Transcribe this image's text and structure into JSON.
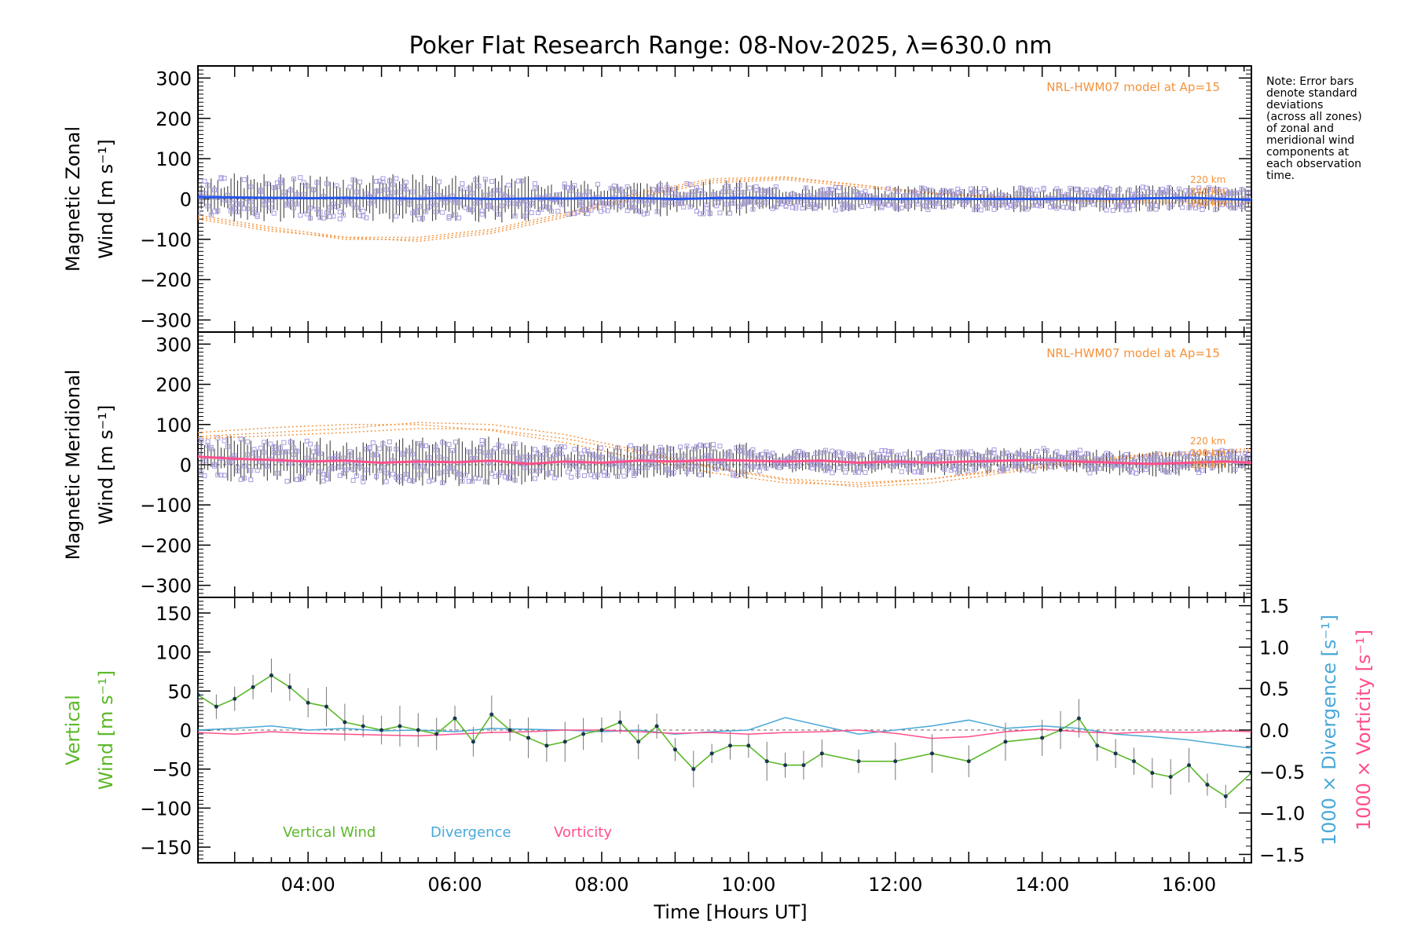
{
  "title": "Poker Flat Research Range: 08-Nov-2025, λ=630.0 nm",
  "note": [
    "Note: Error bars",
    "denote standard",
    "deviations",
    "(across all zones)",
    "of zonal and",
    "meridional wind",
    "components at",
    "each observation",
    "time."
  ],
  "xlabel": "Time [Hours UT]",
  "colors": {
    "axis": "#000000",
    "model": "#f4923a",
    "zonal": "#2255ee",
    "meridional": "#ff4f8b",
    "vertical": "#5cb82a",
    "divergence": "#4aa8d8",
    "vorticity": "#ff4f8b",
    "scatter": "#a89ae0",
    "errorbar": "#333333"
  },
  "chart_data": [
    {
      "type": "line",
      "panel": "zonal",
      "ylabel_line1": "Magnetic Zonal",
      "ylabel_line2": "Wind [m s⁻¹]",
      "ylim": [
        -330,
        330
      ],
      "yticks": [
        300,
        200,
        100,
        0,
        -100,
        -200,
        -300
      ],
      "xlim": [
        2.5,
        16.85
      ],
      "model_label": "NRL-HWM07 model at Ap=15",
      "model_altitudes": [
        "220 km",
        "240 km",
        "260 km"
      ],
      "model_series": [
        {
          "name": "220 km",
          "x": [
            2.5,
            3.5,
            4.5,
            5.5,
            6.5,
            7.5,
            8.5,
            9.5,
            10.5,
            11.5,
            12.5,
            13.5,
            14.5,
            15.5,
            16.85
          ],
          "y": [
            -50,
            -80,
            -95,
            -95,
            -75,
            -35,
            15,
            50,
            55,
            35,
            15,
            5,
            0,
            0,
            2
          ]
        },
        {
          "name": "240 km",
          "x": [
            2.5,
            3.5,
            4.5,
            5.5,
            6.5,
            7.5,
            8.5,
            9.5,
            10.5,
            11.5,
            12.5,
            13.5,
            14.5,
            15.5,
            16.85
          ],
          "y": [
            -45,
            -75,
            -100,
            -100,
            -80,
            -40,
            10,
            45,
            52,
            35,
            15,
            5,
            -2,
            -5,
            -5
          ]
        },
        {
          "name": "260 km",
          "x": [
            2.5,
            3.5,
            4.5,
            5.5,
            6.5,
            7.5,
            8.5,
            9.5,
            10.5,
            11.5,
            12.5,
            13.5,
            14.5,
            15.5,
            16.85
          ],
          "y": [
            -40,
            -70,
            -95,
            -105,
            -85,
            -45,
            5,
            40,
            48,
            30,
            12,
            2,
            -5,
            -10,
            -10
          ]
        }
      ],
      "series": [
        {
          "name": "Magnetic Zonal Wind",
          "x": [
            2.5,
            3.0,
            3.5,
            4.0,
            4.5,
            5.0,
            5.5,
            6.0,
            6.5,
            7.0,
            7.5,
            8.0,
            8.5,
            9.0,
            9.5,
            10.0,
            10.5,
            11.0,
            11.5,
            12.0,
            12.5,
            13.0,
            13.5,
            14.0,
            14.5,
            15.0,
            15.5,
            16.0,
            16.5,
            16.85
          ],
          "y": [
            5,
            4,
            3,
            2,
            3,
            2,
            1,
            2,
            0,
            1,
            1,
            2,
            2,
            0,
            2,
            3,
            2,
            1,
            1,
            0,
            1,
            0,
            0,
            0,
            1,
            0,
            2,
            3,
            0,
            -2
          ]
        }
      ]
    },
    {
      "type": "line",
      "panel": "meridional",
      "ylabel_line1": "Magnetic Meridional",
      "ylabel_line2": "Wind [m s⁻¹]",
      "ylim": [
        -330,
        330
      ],
      "yticks": [
        300,
        200,
        100,
        0,
        -100,
        -200,
        -300
      ],
      "xlim": [
        2.5,
        16.85
      ],
      "model_label": "NRL-HWM07 model at Ap=15",
      "model_altitudes": [
        "220 km",
        "240 km",
        "260 km"
      ],
      "model_series": [
        {
          "name": "220 km",
          "x": [
            2.5,
            3.5,
            4.5,
            5.5,
            6.5,
            7.5,
            8.5,
            9.5,
            10.5,
            11.5,
            12.5,
            13.5,
            14.5,
            15.5,
            16.85
          ],
          "y": [
            80,
            92,
            100,
            100,
            85,
            55,
            15,
            -20,
            -45,
            -50,
            -35,
            -10,
            10,
            28,
            40
          ]
        },
        {
          "name": "240 km",
          "x": [
            2.5,
            3.5,
            4.5,
            5.5,
            6.5,
            7.5,
            8.5,
            9.5,
            10.5,
            11.5,
            12.5,
            13.5,
            14.5,
            15.5,
            16.85
          ],
          "y": [
            70,
            80,
            90,
            105,
            100,
            75,
            35,
            -5,
            -35,
            -45,
            -35,
            -15,
            5,
            25,
            35
          ]
        },
        {
          "name": "260 km",
          "x": [
            2.5,
            3.5,
            4.5,
            5.5,
            6.5,
            7.5,
            8.5,
            9.5,
            10.5,
            11.5,
            12.5,
            13.5,
            14.5,
            15.5,
            16.85
          ],
          "y": [
            65,
            72,
            80,
            90,
            88,
            65,
            30,
            -8,
            -38,
            -55,
            -45,
            -20,
            2,
            22,
            32
          ]
        }
      ],
      "series": [
        {
          "name": "Magnetic Meridional Wind",
          "x": [
            2.5,
            3.0,
            3.5,
            4.0,
            4.5,
            5.0,
            5.5,
            6.0,
            6.5,
            7.0,
            7.5,
            8.0,
            8.5,
            9.0,
            9.5,
            10.0,
            10.5,
            11.0,
            11.5,
            12.0,
            12.5,
            13.0,
            13.5,
            14.0,
            14.5,
            15.0,
            15.5,
            16.0,
            16.5,
            16.85
          ],
          "y": [
            20,
            15,
            12,
            8,
            10,
            5,
            8,
            6,
            10,
            2,
            8,
            5,
            10,
            8,
            12,
            10,
            8,
            10,
            5,
            8,
            5,
            8,
            10,
            12,
            8,
            5,
            2,
            5,
            8,
            5
          ]
        }
      ]
    },
    {
      "type": "line",
      "panel": "vertical",
      "ylabel_line1": "Vertical",
      "ylabel_line2": "Wind [m s⁻¹]",
      "y2label_div": "1000 × Divergence [s⁻¹]",
      "y2label_vort": "1000 × Vorticity [s⁻¹]",
      "ylim": [
        -170,
        170
      ],
      "yticks": [
        150,
        100,
        50,
        0,
        -50,
        -100,
        -150
      ],
      "y2lim": [
        -1.6,
        1.6
      ],
      "y2ticks": [
        "1.5",
        "1.0",
        "0.5",
        "0.0",
        "−0.5",
        "−1.0",
        "−1.5"
      ],
      "xlim": [
        2.5,
        16.85
      ],
      "xticks": [
        "04:00",
        "06:00",
        "08:00",
        "10:00",
        "12:00",
        "14:00",
        "16:00"
      ],
      "legend": [
        "Vertical Wind",
        "Divergence",
        "Vorticity"
      ],
      "series": [
        {
          "name": "Vertical Wind",
          "axis": "left",
          "x": [
            2.5,
            2.75,
            3.0,
            3.25,
            3.5,
            3.75,
            4.0,
            4.25,
            4.5,
            4.75,
            5.0,
            5.25,
            5.5,
            5.75,
            6.0,
            6.25,
            6.5,
            6.75,
            7.0,
            7.25,
            7.5,
            7.75,
            8.0,
            8.25,
            8.5,
            8.75,
            9.0,
            9.25,
            9.5,
            9.75,
            10.0,
            10.25,
            10.5,
            10.75,
            11.0,
            11.5,
            12.0,
            12.5,
            13.0,
            13.5,
            14.0,
            14.25,
            14.5,
            14.75,
            15.0,
            15.25,
            15.5,
            15.75,
            16.0,
            16.25,
            16.5,
            16.85
          ],
          "y": [
            45,
            30,
            40,
            55,
            70,
            55,
            35,
            30,
            10,
            5,
            0,
            5,
            0,
            -5,
            15,
            -15,
            20,
            0,
            -10,
            -20,
            -15,
            -5,
            0,
            10,
            -15,
            5,
            -25,
            -50,
            -30,
            -20,
            -20,
            -40,
            -45,
            -45,
            -30,
            -40,
            -40,
            -30,
            -40,
            -15,
            -10,
            0,
            15,
            -20,
            -30,
            -40,
            -55,
            -60,
            -45,
            -70,
            -85,
            -55
          ]
        },
        {
          "name": "Divergence",
          "axis": "right",
          "x": [
            2.5,
            3.0,
            3.5,
            4.0,
            4.5,
            5.0,
            5.5,
            6.0,
            6.5,
            7.0,
            7.5,
            8.0,
            8.5,
            9.0,
            9.5,
            10.0,
            10.5,
            11.0,
            11.5,
            12.0,
            12.5,
            13.0,
            13.5,
            14.0,
            14.5,
            15.0,
            15.5,
            16.0,
            16.5,
            16.85
          ],
          "y": [
            0.0,
            0.02,
            0.05,
            0.0,
            0.02,
            -0.01,
            0.0,
            -0.02,
            0.02,
            0.01,
            0.0,
            -0.02,
            0.0,
            -0.05,
            -0.02,
            0.0,
            0.15,
            0.05,
            -0.05,
            0.0,
            0.05,
            0.12,
            0.02,
            0.05,
            0.02,
            -0.05,
            -0.08,
            -0.12,
            -0.18,
            -0.22
          ]
        },
        {
          "name": "Vorticity",
          "axis": "right",
          "x": [
            2.5,
            3.0,
            3.5,
            4.0,
            4.5,
            5.0,
            5.5,
            6.0,
            6.5,
            7.0,
            7.5,
            8.0,
            8.5,
            9.0,
            9.5,
            10.0,
            10.5,
            11.0,
            11.5,
            12.0,
            12.5,
            13.0,
            13.5,
            14.0,
            14.5,
            15.0,
            15.5,
            16.0,
            16.5,
            16.85
          ],
          "y": [
            -0.03,
            -0.05,
            -0.02,
            -0.04,
            -0.05,
            -0.06,
            -0.07,
            -0.05,
            -0.03,
            -0.02,
            0.0,
            0.0,
            -0.02,
            -0.04,
            -0.03,
            -0.05,
            -0.03,
            -0.02,
            0.0,
            -0.04,
            -0.1,
            -0.08,
            -0.02,
            0.01,
            -0.02,
            -0.04,
            -0.02,
            -0.03,
            -0.01,
            -0.02
          ]
        }
      ]
    }
  ]
}
